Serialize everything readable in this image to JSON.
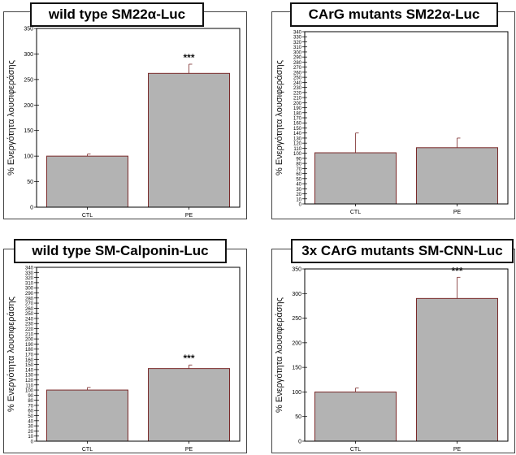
{
  "charts": [
    {
      "title": "wild type SM22α-Luc"
    },
    {
      "title": "CArG mutants SM22α-Luc"
    },
    {
      "title": "wild type SM-Calponin-Luc"
    },
    {
      "title": "3x CArG mutants SM-CNN-Luc"
    }
  ],
  "chart_data": [
    {
      "type": "bar",
      "title": "wild type SM22α-Luc",
      "categories": [
        "CTL",
        "PE"
      ],
      "values": [
        100,
        262
      ],
      "errors": [
        4,
        18
      ],
      "annotations": [
        "",
        "***"
      ],
      "ylabel": "% Ενεργότητα λουσιφεράσης",
      "ylim": [
        0,
        350
      ],
      "yticks": [
        0,
        50,
        100,
        150,
        200,
        250,
        300,
        350
      ],
      "bar_color": "#b3b3b3",
      "bar_edge": "#7a2a2a"
    },
    {
      "type": "bar",
      "title": "CArG mutants SM22α-Luc",
      "categories": [
        "CTL",
        "PE"
      ],
      "values": [
        101,
        111
      ],
      "errors": [
        39,
        19
      ],
      "annotations": [
        "",
        ""
      ],
      "ylabel": "% Ενεργότητα λουσιφεράσης",
      "ylim": [
        0,
        340
      ],
      "yticks": [
        0,
        10,
        20,
        30,
        40,
        50,
        60,
        70,
        80,
        90,
        100,
        110,
        120,
        130,
        140,
        150,
        160,
        170,
        180,
        190,
        200,
        210,
        220,
        230,
        240,
        250,
        260,
        270,
        280,
        290,
        300,
        310,
        320,
        330,
        340
      ],
      "bar_color": "#b3b3b3",
      "bar_edge": "#7a2a2a"
    },
    {
      "type": "bar",
      "title": "wild type SM-Calponin-Luc",
      "categories": [
        "CTL",
        "PE"
      ],
      "values": [
        100,
        142
      ],
      "errors": [
        5,
        7
      ],
      "annotations": [
        "",
        "***"
      ],
      "ylabel": "% Ενεργότητα λουσιφεράσης",
      "ylim": [
        0,
        340
      ],
      "yticks": [
        0,
        10,
        20,
        30,
        40,
        50,
        60,
        70,
        80,
        90,
        100,
        110,
        120,
        130,
        140,
        150,
        160,
        170,
        180,
        190,
        200,
        210,
        220,
        230,
        240,
        250,
        260,
        270,
        280,
        290,
        300,
        310,
        320,
        330,
        340
      ],
      "bar_color": "#b3b3b3",
      "bar_edge": "#7a2a2a"
    },
    {
      "type": "bar",
      "title": "3x CArG mutants SM-CNN-Luc",
      "categories": [
        "CTL",
        "PE"
      ],
      "values": [
        100,
        290
      ],
      "errors": [
        8,
        43
      ],
      "annotations": [
        "",
        "***"
      ],
      "ylabel": "% Ενεργότητα λουσιφεράσης",
      "ylim": [
        0,
        350
      ],
      "yticks": [
        0,
        50,
        100,
        150,
        200,
        250,
        300,
        350
      ],
      "bar_color": "#b3b3b3",
      "bar_edge": "#7a2a2a"
    }
  ]
}
